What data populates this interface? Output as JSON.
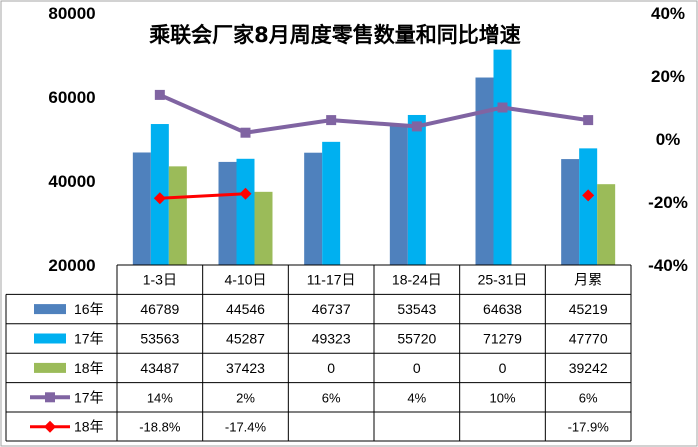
{
  "chart_data": {
    "type": "bar",
    "title": "乘联会厂家8月周度零售数量和同比增速",
    "categories": [
      "1-3日",
      "4-10日",
      "11-17日",
      "18-24日",
      "25-31日",
      "月累"
    ],
    "ylim": [
      20000,
      80000
    ],
    "y_ticks": [
      "20000",
      "40000",
      "60000",
      "80000"
    ],
    "y2lim": [
      -0.4,
      0.4
    ],
    "y2_ticks": [
      "-40%",
      "-20%",
      "0%",
      "20%",
      "40%"
    ],
    "series": [
      {
        "name": "16年",
        "kind": "bar",
        "color": "#4F81BD",
        "values": [
          46789,
          44546,
          46737,
          53543,
          64638,
          45219
        ],
        "labels": [
          "46789",
          "44546",
          "46737",
          "53543",
          "64638",
          "45219"
        ]
      },
      {
        "name": "17年",
        "kind": "bar",
        "color": "#00B0F0",
        "values": [
          53563,
          45287,
          49323,
          55720,
          71279,
          47770
        ],
        "labels": [
          "53563",
          "45287",
          "49323",
          "55720",
          "71279",
          "47770"
        ]
      },
      {
        "name": "18年",
        "kind": "bar",
        "color": "#9BBB59",
        "values": [
          43487,
          37423,
          0,
          0,
          0,
          39242
        ],
        "labels": [
          "43487",
          "37423",
          "0",
          "0",
          "0",
          "39242"
        ]
      },
      {
        "name": "17年",
        "kind": "line",
        "axis": "right",
        "color": "#8064A2",
        "marker": "square",
        "values": [
          0.14,
          0.02,
          0.06,
          0.04,
          0.1,
          0.06
        ],
        "labels": [
          "14%",
          "2%",
          "6%",
          "4%",
          "10%",
          "6%"
        ]
      },
      {
        "name": "18年",
        "kind": "line",
        "axis": "right",
        "color": "#FF0000",
        "marker": "diamond",
        "values": [
          -0.188,
          -0.174,
          null,
          null,
          null,
          -0.179
        ],
        "labels": [
          "-18.8%",
          "-17.4%",
          "",
          "",
          "",
          "-17.9%"
        ]
      }
    ],
    "grid": false,
    "legend": "data-table"
  }
}
